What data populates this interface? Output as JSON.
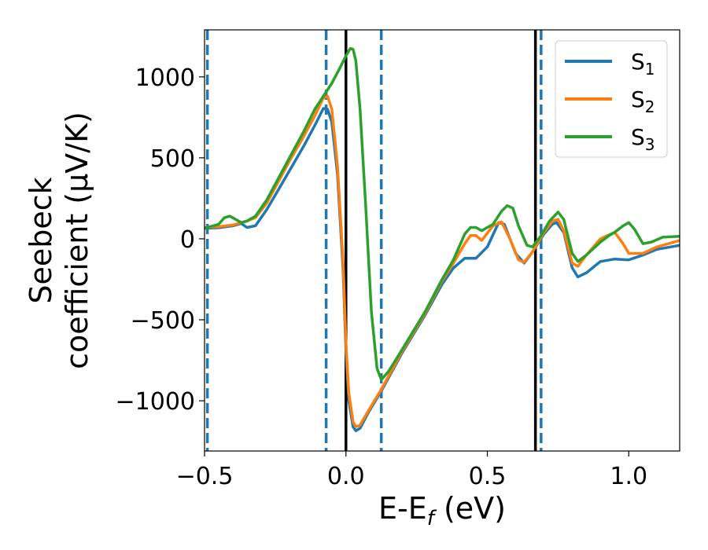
{
  "chart_data": {
    "type": "line",
    "xlabel": "E-E",
    "xlabel_sub": "f",
    "xlabel_unit": " (eV)",
    "ylabel_line1": "Seebeck",
    "ylabel_line2": "coefficient  (μV/K)",
    "xlim": [
      -0.5,
      1.18
    ],
    "ylim": [
      -1310,
      1290
    ],
    "xticks": [
      -0.5,
      0.0,
      0.5,
      1.0
    ],
    "xtick_labels": [
      "−0.5",
      "0.0",
      "0.5",
      "1.0"
    ],
    "yticks": [
      -1000,
      -500,
      0,
      500,
      1000
    ],
    "ytick_labels": [
      "−1000",
      "−500",
      "0",
      "500",
      "1000"
    ],
    "vlines_solid": [
      0.0,
      0.67
    ],
    "vlines_dashed": [
      -0.49,
      -0.07,
      0.125,
      0.69
    ],
    "legend_position": "top-right",
    "series": [
      {
        "name": "S",
        "sub": "1",
        "color": "#1f77b4",
        "points": [
          [
            -0.5,
            65
          ],
          [
            -0.45,
            68
          ],
          [
            -0.4,
            80
          ],
          [
            -0.37,
            95
          ],
          [
            -0.35,
            70
          ],
          [
            -0.32,
            80
          ],
          [
            -0.28,
            180
          ],
          [
            -0.24,
            300
          ],
          [
            -0.2,
            420
          ],
          [
            -0.15,
            570
          ],
          [
            -0.11,
            700
          ],
          [
            -0.08,
            805
          ],
          [
            -0.065,
            800
          ],
          [
            -0.05,
            720
          ],
          [
            -0.03,
            400
          ],
          [
            -0.01,
            -200
          ],
          [
            0.0,
            -700
          ],
          [
            0.01,
            -1000
          ],
          [
            0.025,
            -1160
          ],
          [
            0.035,
            -1185
          ],
          [
            0.05,
            -1170
          ],
          [
            0.08,
            -1070
          ],
          [
            0.125,
            -940
          ],
          [
            0.2,
            -700
          ],
          [
            0.28,
            -470
          ],
          [
            0.34,
            -280
          ],
          [
            0.38,
            -180
          ],
          [
            0.42,
            -120
          ],
          [
            0.46,
            -120
          ],
          [
            0.5,
            -50
          ],
          [
            0.54,
            100
          ],
          [
            0.56,
            90
          ],
          [
            0.6,
            -90
          ],
          [
            0.63,
            -150
          ],
          [
            0.66,
            -80
          ],
          [
            0.7,
            30
          ],
          [
            0.73,
            90
          ],
          [
            0.745,
            100
          ],
          [
            0.77,
            40
          ],
          [
            0.8,
            -180
          ],
          [
            0.82,
            -235
          ],
          [
            0.85,
            -210
          ],
          [
            0.9,
            -140
          ],
          [
            0.95,
            -125
          ],
          [
            1.0,
            -130
          ],
          [
            1.05,
            -100
          ],
          [
            1.1,
            -65
          ],
          [
            1.18,
            -40
          ]
        ]
      },
      {
        "name": "S",
        "sub": "2",
        "color": "#ff7f0e",
        "points": [
          [
            -0.5,
            70
          ],
          [
            -0.45,
            75
          ],
          [
            -0.4,
            85
          ],
          [
            -0.37,
            100
          ],
          [
            -0.35,
            110
          ],
          [
            -0.32,
            130
          ],
          [
            -0.28,
            220
          ],
          [
            -0.24,
            350
          ],
          [
            -0.2,
            480
          ],
          [
            -0.15,
            630
          ],
          [
            -0.11,
            760
          ],
          [
            -0.08,
            870
          ],
          [
            -0.065,
            880
          ],
          [
            -0.05,
            800
          ],
          [
            -0.03,
            450
          ],
          [
            -0.01,
            -150
          ],
          [
            0.0,
            -650
          ],
          [
            0.01,
            -950
          ],
          [
            0.025,
            -1130
          ],
          [
            0.035,
            -1160
          ],
          [
            0.05,
            -1150
          ],
          [
            0.08,
            -1060
          ],
          [
            0.125,
            -930
          ],
          [
            0.2,
            -690
          ],
          [
            0.28,
            -460
          ],
          [
            0.34,
            -260
          ],
          [
            0.38,
            -150
          ],
          [
            0.42,
            -30
          ],
          [
            0.44,
            20
          ],
          [
            0.46,
            20
          ],
          [
            0.48,
            -10
          ],
          [
            0.52,
            80
          ],
          [
            0.55,
            105
          ],
          [
            0.58,
            0
          ],
          [
            0.61,
            -130
          ],
          [
            0.63,
            -145
          ],
          [
            0.66,
            -80
          ],
          [
            0.7,
            40
          ],
          [
            0.73,
            110
          ],
          [
            0.75,
            120
          ],
          [
            0.77,
            50
          ],
          [
            0.8,
            -150
          ],
          [
            0.82,
            -170
          ],
          [
            0.85,
            -100
          ],
          [
            0.9,
            0
          ],
          [
            0.95,
            40
          ],
          [
            0.98,
            -30
          ],
          [
            1.0,
            -90
          ],
          [
            1.05,
            -90
          ],
          [
            1.1,
            -50
          ],
          [
            1.18,
            -10
          ]
        ]
      },
      {
        "name": "S",
        "sub": "3",
        "color": "#2ca02c",
        "points": [
          [
            -0.5,
            65
          ],
          [
            -0.45,
            90
          ],
          [
            -0.43,
            130
          ],
          [
            -0.41,
            140
          ],
          [
            -0.39,
            120
          ],
          [
            -0.37,
            100
          ],
          [
            -0.35,
            110
          ],
          [
            -0.32,
            140
          ],
          [
            -0.28,
            240
          ],
          [
            -0.24,
            370
          ],
          [
            -0.2,
            500
          ],
          [
            -0.15,
            660
          ],
          [
            -0.11,
            800
          ],
          [
            -0.08,
            880
          ],
          [
            -0.05,
            960
          ],
          [
            -0.02,
            1060
          ],
          [
            0.0,
            1130
          ],
          [
            0.015,
            1175
          ],
          [
            0.025,
            1170
          ],
          [
            0.035,
            1100
          ],
          [
            0.05,
            800
          ],
          [
            0.07,
            200
          ],
          [
            0.09,
            -450
          ],
          [
            0.11,
            -800
          ],
          [
            0.125,
            -870
          ],
          [
            0.15,
            -820
          ],
          [
            0.2,
            -680
          ],
          [
            0.28,
            -450
          ],
          [
            0.34,
            -250
          ],
          [
            0.38,
            -130
          ],
          [
            0.42,
            30
          ],
          [
            0.44,
            70
          ],
          [
            0.46,
            70
          ],
          [
            0.48,
            50
          ],
          [
            0.52,
            90
          ],
          [
            0.55,
            170
          ],
          [
            0.57,
            205
          ],
          [
            0.59,
            190
          ],
          [
            0.61,
            80
          ],
          [
            0.64,
            -40
          ],
          [
            0.66,
            -50
          ],
          [
            0.69,
            20
          ],
          [
            0.72,
            110
          ],
          [
            0.75,
            165
          ],
          [
            0.77,
            120
          ],
          [
            0.8,
            -90
          ],
          [
            0.82,
            -140
          ],
          [
            0.85,
            -100
          ],
          [
            0.9,
            -20
          ],
          [
            0.93,
            20
          ],
          [
            0.95,
            40
          ],
          [
            0.98,
            80
          ],
          [
            1.0,
            100
          ],
          [
            1.02,
            60
          ],
          [
            1.05,
            -30
          ],
          [
            1.08,
            -20
          ],
          [
            1.12,
            10
          ],
          [
            1.18,
            15
          ]
        ]
      }
    ]
  }
}
